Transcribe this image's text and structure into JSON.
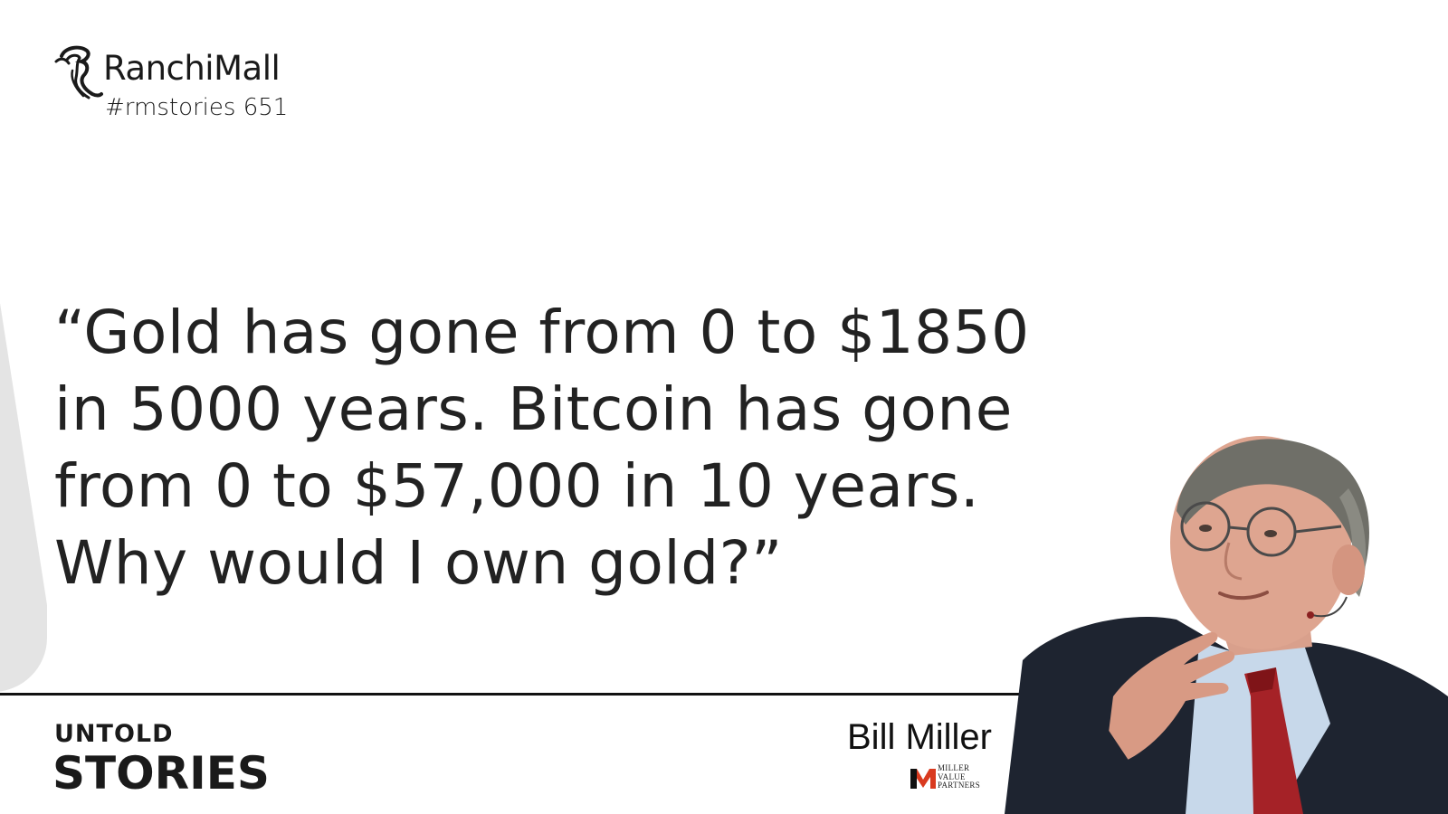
{
  "brand": {
    "name": "RanchiMall",
    "tag": "#rmstories 651",
    "logo_icon": "seahorse-icon"
  },
  "quote": {
    "lines": [
      "“Gold has gone from 0 to $1850",
      "in 5000 years. Bitcoin has gone",
      "from 0 to $57,000 in 10 years.",
      "Why would I own gold?”"
    ]
  },
  "series": {
    "line1": "UNTOLD",
    "line2": "STORIES"
  },
  "speaker": {
    "name": "Bill Miller",
    "company": "MILLER VALUE PARTNERS",
    "company_lines": [
      "MILLER",
      "VALUE",
      "PARTNERS"
    ]
  },
  "colors": {
    "background": "#ffffff",
    "text": "#1f1f1f",
    "accent_red": "#d93a1f",
    "left_shape": "#e4e4e4"
  }
}
